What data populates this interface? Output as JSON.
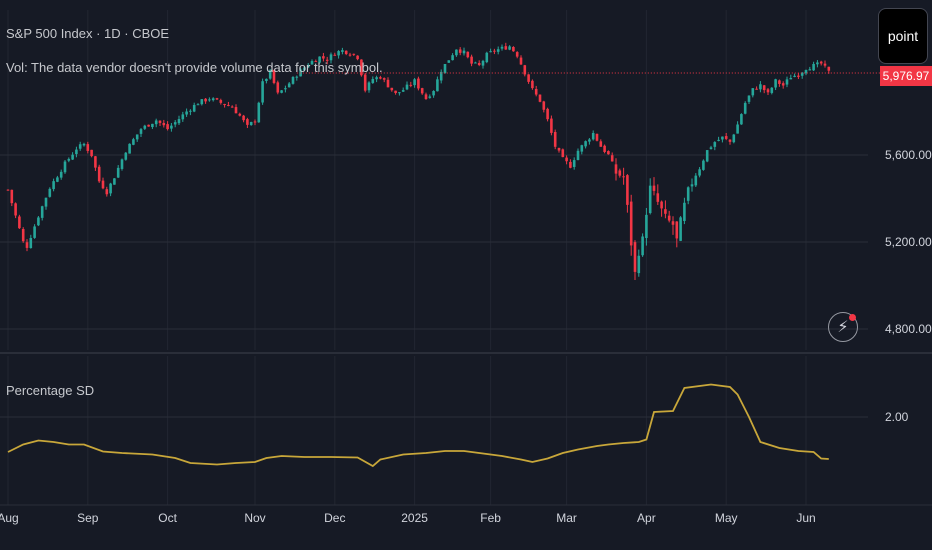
{
  "window": {
    "symbol_title": "S&P 500 Index · 1D · CBOE",
    "volume_note": "Vol: The data vendor doesn't provide volume data for this symbol.",
    "tool_tab": "point",
    "last_price_label": "5,976.97",
    "alert_icon": "lightning-icon"
  },
  "colors": {
    "background": "#161a25",
    "grid": "#2a2e39",
    "up": "#26a69a",
    "down": "#f23645",
    "indicator": "#c8a73a",
    "axis_text": "#d1d4dc"
  },
  "chart_data": [
    {
      "type": "candlestick",
      "title": "S&P 500 Index · 1D · CBOE",
      "y_axis": {
        "ticks": [
          4800,
          5200,
          5600
        ],
        "tick_labels": [
          "4,800.00",
          "5,200.00",
          "5,600.00"
        ],
        "ylim": [
          4740,
          6200
        ]
      },
      "x_axis": {
        "labels": [
          "Aug",
          "Sep",
          "Oct",
          "Nov",
          "Dec",
          "2025",
          "Feb",
          "Mar",
          "Apr",
          "May",
          "Jun"
        ],
        "label_index": [
          0,
          21,
          42,
          65,
          86,
          107,
          127,
          147,
          168,
          189,
          210
        ]
      },
      "last_price": 5976.97,
      "grid": true,
      "close_path": [
        [
          0,
          5440
        ],
        [
          2,
          5320
        ],
        [
          4,
          5200
        ],
        [
          5,
          5180
        ],
        [
          8,
          5320
        ],
        [
          11,
          5450
        ],
        [
          15,
          5560
        ],
        [
          18,
          5630
        ],
        [
          20,
          5650
        ],
        [
          22,
          5600
        ],
        [
          24,
          5480
        ],
        [
          26,
          5430
        ],
        [
          28,
          5500
        ],
        [
          31,
          5620
        ],
        [
          35,
          5720
        ],
        [
          39,
          5760
        ],
        [
          42,
          5720
        ],
        [
          44,
          5750
        ],
        [
          47,
          5800
        ],
        [
          50,
          5840
        ],
        [
          53,
          5860
        ],
        [
          56,
          5840
        ],
        [
          59,
          5820
        ],
        [
          61,
          5780
        ],
        [
          63,
          5730
        ],
        [
          65,
          5760
        ],
        [
          67,
          5930
        ],
        [
          69,
          5980
        ],
        [
          71,
          5880
        ],
        [
          73,
          5910
        ],
        [
          76,
          5970
        ],
        [
          79,
          6020
        ],
        [
          82,
          6050
        ],
        [
          84,
          6040
        ],
        [
          86,
          6070
        ],
        [
          88,
          6080
        ],
        [
          90,
          6070
        ],
        [
          92,
          6050
        ],
        [
          94,
          5900
        ],
        [
          96,
          5950
        ],
        [
          98,
          5960
        ],
        [
          100,
          5920
        ],
        [
          102,
          5880
        ],
        [
          104,
          5900
        ],
        [
          107,
          5940
        ],
        [
          110,
          5860
        ],
        [
          112,
          5900
        ],
        [
          114,
          5990
        ],
        [
          116,
          6040
        ],
        [
          118,
          6090
        ],
        [
          120,
          6070
        ],
        [
          122,
          6020
        ],
        [
          124,
          6010
        ],
        [
          126,
          6060
        ],
        [
          128,
          6080
        ],
        [
          130,
          6090
        ],
        [
          132,
          6100
        ],
        [
          134,
          6060
        ],
        [
          136,
          5980
        ],
        [
          138,
          5900
        ],
        [
          140,
          5850
        ],
        [
          142,
          5760
        ],
        [
          144,
          5640
        ],
        [
          146,
          5580
        ],
        [
          148,
          5550
        ],
        [
          150,
          5620
        ],
        [
          152,
          5660
        ],
        [
          154,
          5700
        ],
        [
          156,
          5640
        ],
        [
          158,
          5600
        ],
        [
          160,
          5520
        ],
        [
          162,
          5500
        ],
        [
          164,
          5200
        ],
        [
          165,
          5050
        ],
        [
          166,
          5170
        ],
        [
          167,
          5200
        ],
        [
          168,
          5350
        ],
        [
          169,
          5440
        ],
        [
          171,
          5380
        ],
        [
          173,
          5300
        ],
        [
          175,
          5280
        ],
        [
          176,
          5200
        ],
        [
          178,
          5360
        ],
        [
          180,
          5480
        ],
        [
          182,
          5540
        ],
        [
          184,
          5620
        ],
        [
          186,
          5660
        ],
        [
          188,
          5680
        ],
        [
          190,
          5660
        ],
        [
          192,
          5740
        ],
        [
          194,
          5840
        ],
        [
          196,
          5900
        ],
        [
          198,
          5920
        ],
        [
          200,
          5880
        ],
        [
          202,
          5940
        ],
        [
          204,
          5920
        ],
        [
          206,
          5960
        ],
        [
          208,
          5970
        ],
        [
          210,
          6000
        ],
        [
          212,
          6010
        ],
        [
          214,
          6020
        ],
        [
          216,
          5980
        ]
      ]
    },
    {
      "type": "line",
      "title": "Percentage SD",
      "series": [
        {
          "name": "Percentage SD"
        }
      ],
      "y_axis": {
        "ticks": [
          2.0
        ],
        "tick_labels": [
          "2.00"
        ],
        "ylim": [
          0.5,
          2.78
        ]
      },
      "x": [
        0,
        4,
        8,
        12,
        16,
        20,
        25,
        30,
        38,
        44,
        48,
        55,
        60,
        65,
        68,
        72,
        78,
        85,
        92,
        96,
        98,
        104,
        110,
        115,
        120,
        130,
        135,
        138,
        142,
        146,
        150,
        155,
        158,
        162,
        166,
        168,
        170,
        175,
        178,
        185,
        190,
        192,
        195,
        198,
        203,
        208,
        212,
        214,
        216
      ],
      "values": [
        1.3,
        1.45,
        1.53,
        1.5,
        1.45,
        1.45,
        1.31,
        1.28,
        1.25,
        1.18,
        1.08,
        1.05,
        1.08,
        1.1,
        1.18,
        1.22,
        1.2,
        1.2,
        1.19,
        1.02,
        1.15,
        1.25,
        1.28,
        1.32,
        1.32,
        1.22,
        1.15,
        1.1,
        1.17,
        1.28,
        1.35,
        1.42,
        1.45,
        1.48,
        1.5,
        1.55,
        2.1,
        2.12,
        2.58,
        2.65,
        2.6,
        2.45,
        2.0,
        1.5,
        1.38,
        1.32,
        1.3,
        1.17,
        1.16
      ]
    }
  ]
}
